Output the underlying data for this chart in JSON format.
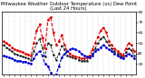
{
  "title": "Milwaukee Weather Outdoor Temperature (vs) Dew Point (Last 24 Hours)",
  "background_color": "#ffffff",
  "grid_color": "#888888",
  "num_points": 48,
  "temp": [
    52,
    50,
    48,
    46,
    44,
    43,
    42,
    41,
    40,
    39,
    38,
    50,
    62,
    68,
    55,
    45,
    72,
    75,
    60,
    48,
    52,
    58,
    48,
    42,
    40,
    38,
    37,
    36,
    35,
    35,
    36,
    38,
    44,
    50,
    56,
    62,
    65,
    60,
    52,
    48,
    45,
    42,
    40,
    38,
    45,
    50,
    48,
    42
  ],
  "dew": [
    38,
    37,
    36,
    35,
    34,
    33,
    33,
    32,
    32,
    31,
    30,
    35,
    40,
    42,
    38,
    30,
    28,
    22,
    18,
    20,
    28,
    36,
    40,
    42,
    44,
    45,
    44,
    42,
    40,
    38,
    37,
    36,
    38,
    42,
    44,
    46,
    48,
    46,
    44,
    42,
    40,
    38,
    36,
    35,
    38,
    40,
    38,
    35
  ],
  "other": [
    48,
    46,
    44,
    42,
    40,
    39,
    38,
    37,
    36,
    35,
    34,
    42,
    50,
    54,
    46,
    37,
    50,
    48,
    39,
    34,
    40,
    47,
    44,
    38,
    37,
    36,
    35,
    34,
    33,
    33,
    33,
    36,
    40,
    45,
    50,
    54,
    56,
    52,
    48,
    45,
    42,
    40,
    38,
    36,
    41,
    45,
    43,
    38
  ],
  "ylim": [
    20,
    80
  ],
  "yticks": [
    30,
    40,
    50,
    60,
    70,
    80
  ],
  "temp_color": "#dd0000",
  "dew_color": "#0000cc",
  "other_color": "#111111",
  "title_fontsize": 3.8,
  "tick_fontsize": 3.2
}
